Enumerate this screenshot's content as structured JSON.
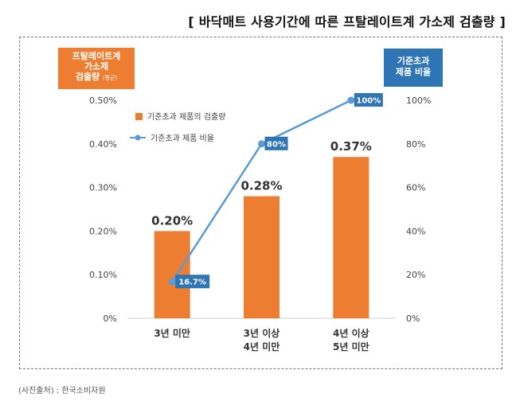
{
  "title": "[ 바닥매트 사용기간에 따른 프탈레이트계 가소제 검출량 ]",
  "left_axis_title": {
    "line1": "프탈레이트계",
    "line2": "가소제",
    "line3": "검출량",
    "unit": "(평균)"
  },
  "right_axis_title": {
    "line1": "기준초과",
    "line2": "제품 비율"
  },
  "source": "(사진출처) : 한국소비자원",
  "colors": {
    "bar": "#ED7D31",
    "line": "#5B9BD5",
    "point_label": "#2E75B6"
  },
  "chart_data": {
    "type": "bar+line",
    "categories": [
      [
        "3년 미만"
      ],
      [
        "3년 이상",
        "4년 미만"
      ],
      [
        "4년 이상",
        "5년 미만"
      ]
    ],
    "series": [
      {
        "name": "기준초과 제품의 검출량",
        "type": "bar",
        "axis": "left",
        "values": [
          0.2,
          0.28,
          0.37
        ],
        "labels": [
          "0.20%",
          "0.28%",
          "0.37%"
        ]
      },
      {
        "name": "기준초과 제품 비율",
        "type": "line",
        "axis": "right",
        "values": [
          16.7,
          80,
          100
        ],
        "labels": [
          "16.7%",
          "80%",
          "100%"
        ]
      }
    ],
    "left_axis": {
      "min": 0,
      "max": 0.5,
      "ticks": [
        "0%",
        "0.10%",
        "0.20%",
        "0.30%",
        "0.40%",
        "0.50%"
      ]
    },
    "right_axis": {
      "min": 0,
      "max": 100,
      "ticks": [
        "0%",
        "20%",
        "40%",
        "60%",
        "80%",
        "100%"
      ]
    },
    "legend_position": "top-left"
  }
}
